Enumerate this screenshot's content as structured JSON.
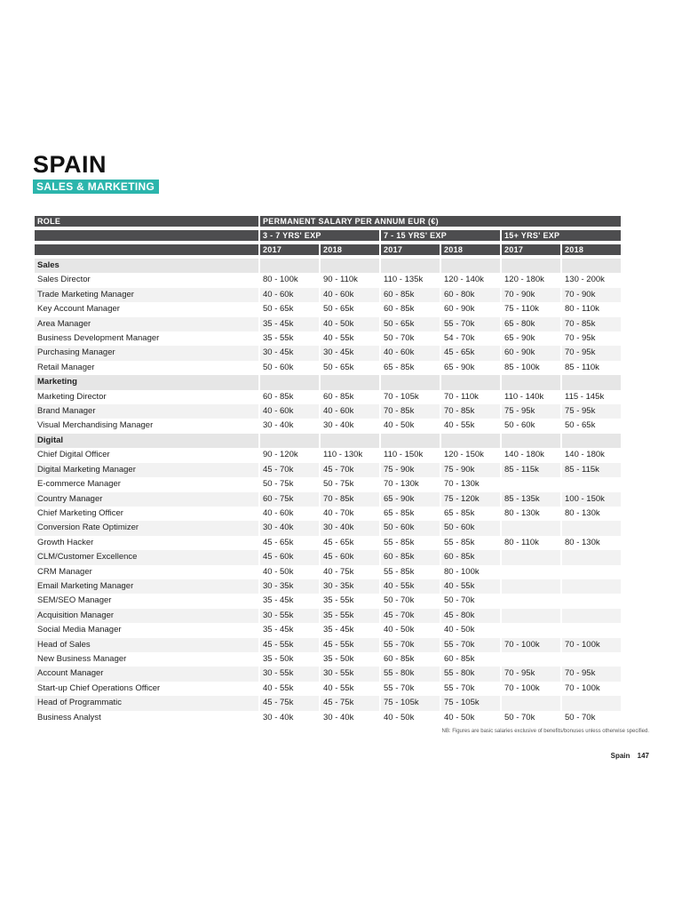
{
  "title": "SPAIN",
  "subtitle": "SALES & MARKETING",
  "headers": {
    "role": "ROLE",
    "salary": "PERMANENT SALARY PER ANNUM EUR (€)",
    "groups": [
      "3 - 7 YRS' EXP",
      "7 - 15 YRS' EXP",
      "15+ YRS' EXP"
    ],
    "years": [
      "2017",
      "2018",
      "2017",
      "2018",
      "2017",
      "2018"
    ]
  },
  "rows": [
    {
      "type": "category",
      "role": "Sales",
      "cells": [
        "",
        "",
        "",
        "",
        "",
        ""
      ]
    },
    {
      "role": "Sales Director",
      "cells": [
        "80 - 100k",
        "90 - 110k",
        "110 - 135k",
        "120 - 140k",
        "120 - 180k",
        "130 - 200k"
      ]
    },
    {
      "role": "Trade Marketing Manager",
      "cells": [
        "40 - 60k",
        "40 - 60k",
        "60 - 85k",
        "60 - 80k",
        "70 - 90k",
        "70 - 90k"
      ]
    },
    {
      "role": "Key Account Manager",
      "cells": [
        "50 - 65k",
        "50 - 65k",
        "60 - 85k",
        "60 - 90k",
        "75 - 110k",
        "80 - 110k"
      ]
    },
    {
      "role": "Area Manager",
      "cells": [
        "35 - 45k",
        "40 - 50k",
        "50 - 65k",
        "55 - 70k",
        "65 - 80k",
        "70 - 85k"
      ]
    },
    {
      "role": "Business Development Manager",
      "cells": [
        "35 - 55k",
        "40 - 55k",
        "50 - 70k",
        "54 - 70k",
        "65 - 90k",
        "70 - 95k"
      ]
    },
    {
      "role": "Purchasing Manager",
      "cells": [
        "30 - 45k",
        "30 - 45k",
        "40 - 60k",
        "45 - 65k",
        "60 - 90k",
        "70 - 95k"
      ]
    },
    {
      "role": "Retail Manager",
      "cells": [
        "50 - 60k",
        "50 - 65k",
        "65 - 85k",
        "65 - 90k",
        "85 - 100k",
        "85 - 110k"
      ]
    },
    {
      "type": "category",
      "role": "Marketing",
      "cells": [
        "",
        "",
        "",
        "",
        "",
        ""
      ]
    },
    {
      "role": "Marketing Director",
      "cells": [
        "60 - 85k",
        "60 - 85k",
        "70 - 105k",
        "70 - 110k",
        "110 - 140k",
        "115 - 145k"
      ]
    },
    {
      "role": "Brand Manager",
      "cells": [
        "40 - 60k",
        "40 - 60k",
        "70 - 85k",
        "70 - 85k",
        "75 - 95k",
        "75 - 95k"
      ]
    },
    {
      "role": "Visual Merchandising Manager",
      "cells": [
        "30 - 40k",
        "30 - 40k",
        "40 - 50k",
        "40 - 55k",
        "50 - 60k",
        "50 - 65k"
      ]
    },
    {
      "type": "category",
      "role": "Digital",
      "cells": [
        "",
        "",
        "",
        "",
        "",
        ""
      ]
    },
    {
      "role": "Chief Digital Officer",
      "cells": [
        "90 - 120k",
        "110 - 130k",
        "110 - 150k",
        "120 - 150k",
        "140 - 180k",
        "140 - 180k"
      ]
    },
    {
      "role": "Digital Marketing Manager",
      "cells": [
        "45 - 70k",
        "45 - 70k",
        "75 - 90k",
        "75 - 90k",
        "85 - 115k",
        "85 - 115k"
      ]
    },
    {
      "role": "E-commerce Manager",
      "cells": [
        "50 - 75k",
        "50 - 75k",
        "70 - 130k",
        "70 - 130k",
        "",
        ""
      ]
    },
    {
      "role": "Country Manager",
      "cells": [
        "60 - 75k",
        "70 - 85k",
        "65 - 90k",
        "75 - 120k",
        "85 - 135k",
        "100 - 150k"
      ]
    },
    {
      "role": "Chief Marketing Officer",
      "cells": [
        "40 - 60k",
        "40 - 70k",
        "65 - 85k",
        "65 - 85k",
        "80 - 130k",
        "80 - 130k"
      ]
    },
    {
      "role": "Conversion Rate Optimizer",
      "cells": [
        "30 - 40k",
        "30 - 40k",
        "50 - 60k",
        "50 - 60k",
        "",
        ""
      ]
    },
    {
      "role": "Growth Hacker",
      "cells": [
        "45 - 65k",
        "45 - 65k",
        "55 - 85k",
        "55 - 85k",
        "80 - 110k",
        "80 - 130k"
      ]
    },
    {
      "role": "CLM/Customer Excellence",
      "cells": [
        "45 - 60k",
        "45 - 60k",
        "60 - 85k",
        "60 - 85k",
        "",
        ""
      ]
    },
    {
      "role": "CRM Manager",
      "cells": [
        "40 - 50k",
        "40 - 75k",
        "55 - 85k",
        "80 - 100k",
        "",
        ""
      ]
    },
    {
      "role": "Email Marketing Manager",
      "cells": [
        "30 - 35k",
        "30 - 35k",
        "40 - 55k",
        "40 - 55k",
        "",
        ""
      ]
    },
    {
      "role": "SEM/SEO Manager",
      "cells": [
        "35 - 45k",
        "35 - 55k",
        "50 - 70k",
        "50 - 70k",
        "",
        ""
      ]
    },
    {
      "role": "Acquisition Manager",
      "cells": [
        "30 - 55k",
        "35 - 55k",
        "45 - 70k",
        "45 - 80k",
        "",
        ""
      ]
    },
    {
      "role": "Social Media Manager",
      "cells": [
        "35 - 45k",
        "35 - 45k",
        "40 - 50k",
        "40 - 50k",
        "",
        ""
      ]
    },
    {
      "role": "Head of Sales",
      "cells": [
        "45 - 55k",
        "45 - 55k",
        "55 - 70k",
        "55 - 70k",
        "70 - 100k",
        "70 - 100k"
      ]
    },
    {
      "role": "New Business Manager",
      "cells": [
        "35 - 50k",
        "35 - 50k",
        "60 - 85k",
        "60 - 85k",
        "",
        ""
      ]
    },
    {
      "role": "Account Manager",
      "cells": [
        "30 - 55k",
        "30 - 55k",
        "55 - 80k",
        "55 - 80k",
        "70 - 95k",
        "70 - 95k"
      ]
    },
    {
      "role": "Start-up Chief Operations Officer",
      "cells": [
        "40 - 55k",
        "40 - 55k",
        "55 - 70k",
        "55 - 70k",
        "70 - 100k",
        "70 - 100k"
      ]
    },
    {
      "role": "Head of Programmatic",
      "cells": [
        "45 - 75k",
        "45 - 75k",
        "75 - 105k",
        "75 - 105k",
        "",
        ""
      ]
    },
    {
      "role": "Business Analyst",
      "cells": [
        "30 - 40k",
        "30 - 40k",
        "40 - 50k",
        "40 - 50k",
        "50 - 70k",
        "50 - 70k"
      ]
    }
  ],
  "note": "NB: Figures are basic salaries exclusive of benefits/bonuses unless otherwise specified.",
  "footer": {
    "country": "Spain",
    "page": "147"
  },
  "colors": {
    "accent": "#2bb5ac",
    "header": "#4d4d4f"
  }
}
